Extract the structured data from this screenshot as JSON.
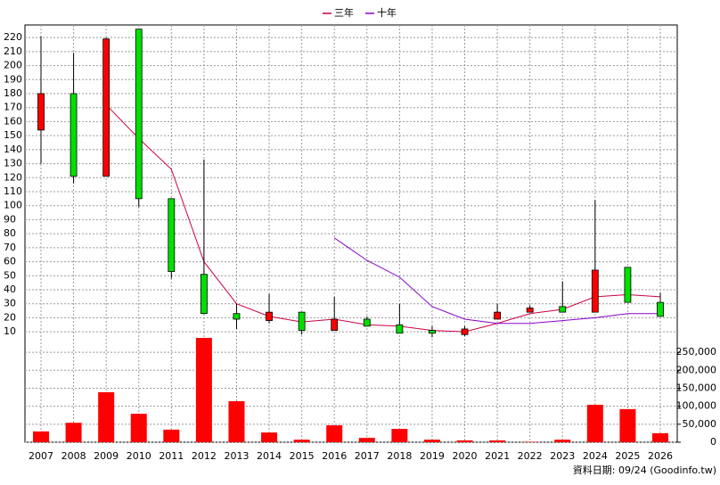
{
  "chart_data": {
    "type": "candlestick",
    "categories": [
      "2007",
      "2008",
      "2009",
      "2010",
      "2011",
      "2012",
      "2013",
      "2014",
      "2015",
      "2016",
      "2017",
      "2018",
      "2019",
      "2020",
      "2021",
      "2022",
      "2023",
      "2024",
      "2025",
      "2026"
    ],
    "open": [
      154,
      180,
      121,
      226,
      105,
      51,
      23,
      18,
      24,
      11,
      19,
      15,
      11,
      8,
      19,
      24,
      28,
      24,
      56,
      31
    ],
    "high": [
      221,
      209,
      220,
      226,
      105,
      133,
      30,
      37,
      24,
      35,
      21,
      30,
      14,
      14,
      30,
      29,
      46,
      104,
      56,
      38
    ],
    "low": [
      130,
      116,
      121,
      99,
      48,
      23,
      12,
      16,
      8,
      11,
      14,
      9,
      6,
      7,
      19,
      24,
      24,
      24,
      31,
      21
    ],
    "close": [
      180,
      121,
      219,
      105,
      53,
      23,
      19,
      24,
      11,
      19,
      14,
      9,
      9,
      12,
      24,
      27,
      24,
      54,
      31,
      21
    ],
    "up_color": "#ff0000",
    "down_color": "#00e000",
    "series": [
      {
        "name": "三年",
        "color": "#cc0044",
        "values": [
          null,
          null,
          172,
          148,
          126,
          60,
          30,
          21,
          17,
          19,
          15,
          14,
          11,
          10,
          16,
          23,
          26,
          35,
          36.5,
          35
        ]
      },
      {
        "name": "十年",
        "color": "#8800cc",
        "values": [
          null,
          null,
          null,
          null,
          null,
          null,
          null,
          null,
          null,
          77,
          61,
          49,
          28,
          19,
          16,
          16,
          18,
          20,
          23,
          23
        ]
      }
    ],
    "ylim": [
      5,
      229
    ],
    "yticks": [
      10,
      20,
      30,
      40,
      50,
      60,
      70,
      80,
      90,
      100,
      110,
      120,
      130,
      140,
      150,
      160,
      170,
      180,
      190,
      200,
      210,
      220
    ],
    "volume": {
      "color": "#ff0000",
      "values": [
        30000,
        54000,
        139000,
        79000,
        35000,
        290000,
        114000,
        27000,
        7000,
        47000,
        12000,
        37000,
        7000,
        5000,
        5000,
        1000,
        7000,
        104000,
        92000,
        25000
      ]
    },
    "y2lim": [
      0,
      290000
    ],
    "y2ticks": [
      0,
      {
        "value": 50000,
        "label": "50,000"
      },
      {
        "value": 100000,
        "label": "100,000"
      },
      {
        "value": 150000,
        "label": "150,000"
      },
      {
        "value": 200000,
        "label": "200,000"
      },
      {
        "value": 250000,
        "label": "250,000"
      }
    ],
    "grid": true,
    "legend": "top",
    "source": "資料日期: 09/24  (Goodinfo.tw)"
  }
}
